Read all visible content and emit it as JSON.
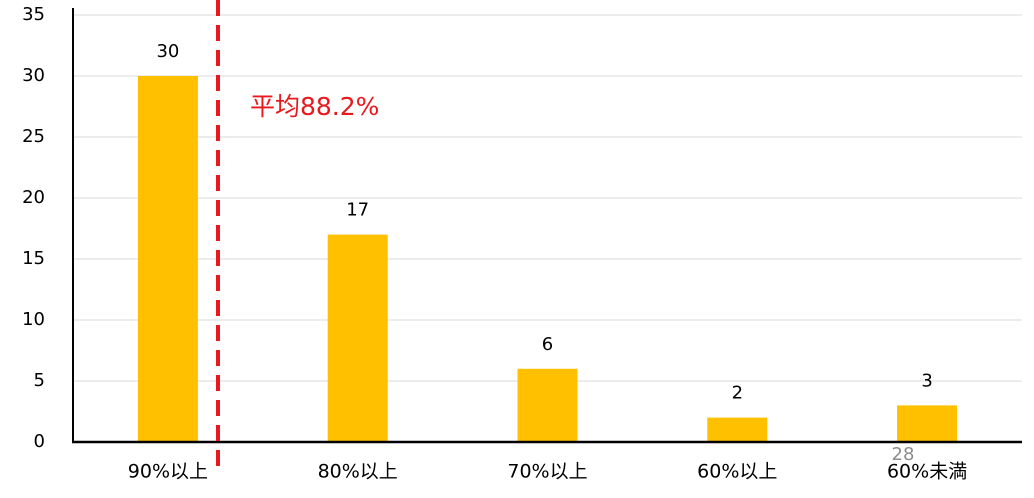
{
  "chart_data": {
    "type": "bar",
    "categories": [
      "90%以上",
      "80%以上",
      "70%以上",
      "60%以上",
      "60%未満"
    ],
    "values": [
      30,
      17,
      6,
      2,
      3
    ],
    "color": "#ffc000",
    "ylim": [
      0,
      35
    ],
    "yticks": [
      0,
      5,
      10,
      15,
      20,
      25,
      30,
      35
    ],
    "grid": true,
    "annotation": "平均88.2%",
    "page_number": "28"
  }
}
